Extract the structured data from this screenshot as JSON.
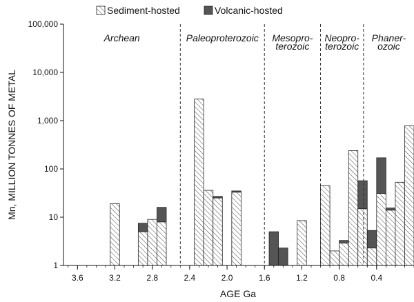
{
  "chart_data": {
    "type": "bar",
    "stacked": true,
    "xlabel": "AGE Ga",
    "ylabel": "Mn, MILLION TONNES OF METAL",
    "yscale": "log",
    "ylim": [
      1,
      100000
    ],
    "xlim": [
      3.75,
      0.0
    ],
    "x_ticks": [
      3.6,
      3.2,
      2.8,
      2.4,
      2.0,
      1.6,
      1.2,
      0.8,
      0.4
    ],
    "x_tick_labels": [
      "3.6",
      "3.2",
      "2.8",
      "2.4",
      "2.0",
      "1.6",
      "1.2",
      "0.8",
      "0.4"
    ],
    "y_ticks": [
      1,
      10,
      100,
      1000,
      10000,
      100000
    ],
    "y_tick_labels": [
      "1",
      "10",
      "100",
      "1,000",
      "10,000",
      "100,000"
    ],
    "bar_width_ga": 0.1,
    "legend": {
      "position": "top",
      "entries": [
        {
          "name": "Sediment-hosted",
          "pattern": "hatch"
        },
        {
          "name": "Volcanic-hosted",
          "color": "#555555"
        }
      ]
    },
    "eras": [
      {
        "label": "Archean",
        "lines": [
          "Archean"
        ],
        "boundary_ga": 2.5
      },
      {
        "label": "Paleoproterozoic",
        "lines": [
          "Paleoproterozoic"
        ],
        "boundary_ga": 1.6
      },
      {
        "label": "Mesoproterozoic",
        "lines": [
          "Mesopro-",
          "terozoic"
        ],
        "boundary_ga": 1.0
      },
      {
        "label": "Neoproterozoic",
        "lines": [
          "Neopro-",
          "terozoic"
        ],
        "boundary_ga": 0.54
      },
      {
        "label": "Phanerozoic",
        "lines": [
          "Phaner-",
          "ozoic"
        ],
        "boundary_ga": null
      }
    ],
    "bars": [
      {
        "x": 3.2,
        "sediment": 19,
        "volcanic": 0
      },
      {
        "x": 2.9,
        "sediment": 5,
        "volcanic": 7.5
      },
      {
        "x": 2.8,
        "sediment": 9,
        "volcanic": 9
      },
      {
        "x": 2.7,
        "sediment": 8,
        "volcanic": 16
      },
      {
        "x": 2.3,
        "sediment": 2800,
        "volcanic": 0
      },
      {
        "x": 2.2,
        "sediment": 36,
        "volcanic": 0
      },
      {
        "x": 2.1,
        "sediment": 25,
        "volcanic": 27
      },
      {
        "x": 1.9,
        "sediment": 33,
        "volcanic": 35
      },
      {
        "x": 1.5,
        "sediment": 1,
        "volcanic": 5
      },
      {
        "x": 1.4,
        "sediment": 1,
        "volcanic": 2.3
      },
      {
        "x": 1.2,
        "sediment": 8.5,
        "volcanic": 0
      },
      {
        "x": 0.95,
        "sediment": 45,
        "volcanic": 0
      },
      {
        "x": 0.85,
        "sediment": 2,
        "volcanic": 0
      },
      {
        "x": 0.75,
        "sediment": 2.9,
        "volcanic": 3.3
      },
      {
        "x": 0.65,
        "sediment": 240,
        "volcanic": 0
      },
      {
        "x": 0.55,
        "sediment": 15,
        "volcanic": 57
      },
      {
        "x": 0.45,
        "sediment": 2.3,
        "volcanic": 5.3
      },
      {
        "x": 0.35,
        "sediment": 31,
        "volcanic": 170
      },
      {
        "x": 0.25,
        "sediment": 14,
        "volcanic": 15.5
      },
      {
        "x": 0.15,
        "sediment": 53,
        "volcanic": 0
      },
      {
        "x": 0.05,
        "sediment": 780,
        "volcanic": 0
      }
    ]
  }
}
